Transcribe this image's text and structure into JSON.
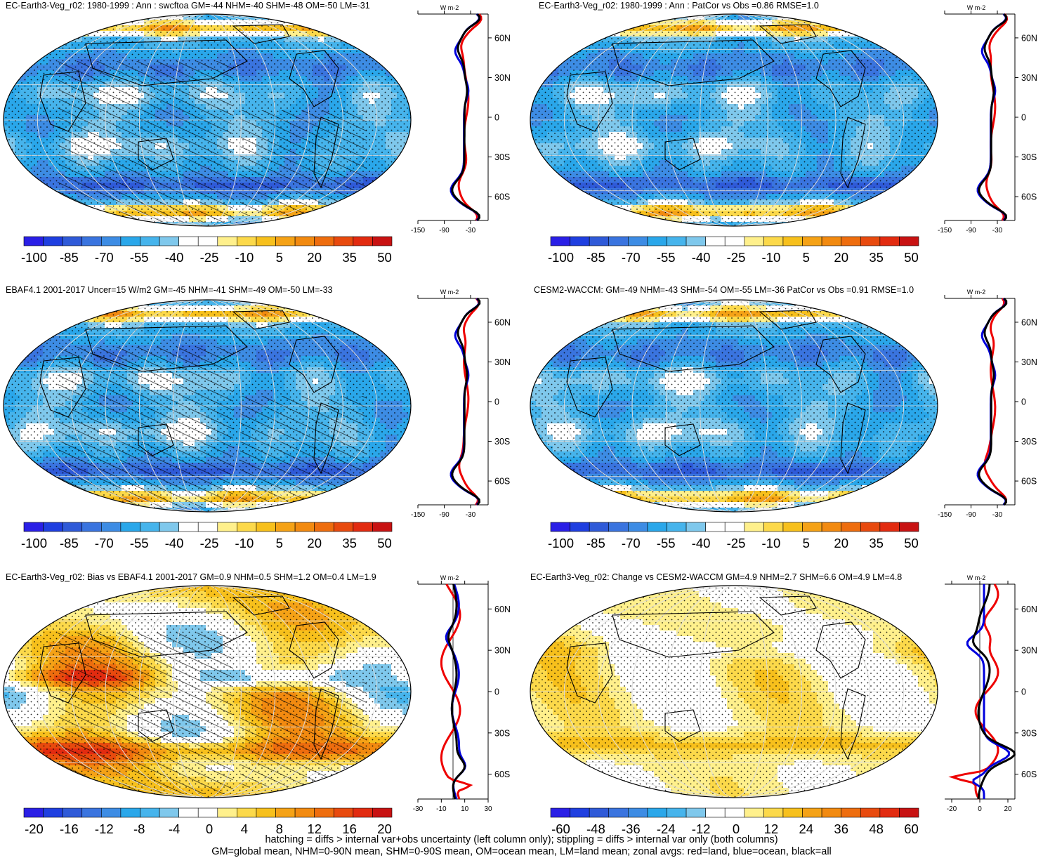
{
  "footnotes": [
    "hatching = diffs > internal var+obs uncertainty (left column only); stippling = diffs > internal var only (both columns)",
    "GM=global mean, NHM=0-90N mean, SHM=0-90S mean, OM=ocean mean, LM=land mean; zonal avgs: red=land, blue=ocean, black=all"
  ],
  "chart_data": [
    {
      "type": "heatmap",
      "title": "EC-Earth3-Veg_r02: 1980-1999 : Ann : swcftoa GM=-44 NHM=-40 SHM=-48 OM=-50 LM=-31",
      "colorbar_labels": [
        "-100",
        "-85",
        "-70",
        "-55",
        "-40",
        "-25",
        "-10",
        "5",
        "20",
        "35",
        "50"
      ],
      "zonal": {
        "units": "W m-2",
        "xticks": [
          "-150",
          "-90",
          "-30"
        ],
        "yticks": [
          "60N",
          "30N",
          "0",
          "30S",
          "60S"
        ]
      }
    },
    {
      "type": "heatmap",
      "title": "EC-Earth3-Veg_r02: 1980-1999 : Ann : PatCor vs Obs =0.86 RMSE=1.0",
      "colorbar_labels": [
        "-100",
        "-85",
        "-70",
        "-55",
        "-40",
        "-25",
        "-10",
        "5",
        "20",
        "35",
        "50"
      ],
      "zonal": {
        "units": "W m-2",
        "xticks": [
          "-150",
          "-90",
          "-30"
        ],
        "yticks": [
          "60N",
          "30N",
          "0",
          "30S",
          "60S"
        ]
      }
    },
    {
      "type": "heatmap",
      "title": "EBAF4.1 2001-2017 Uncer=15 W/m2 GM=-45 NHM=-41 SHM=-49 OM=-50 LM=-33",
      "colorbar_labels": [
        "-100",
        "-85",
        "-70",
        "-55",
        "-40",
        "-25",
        "-10",
        "5",
        "20",
        "35",
        "50"
      ],
      "zonal": {
        "units": "W m-2",
        "xticks": [
          "-150",
          "-90",
          "-30"
        ],
        "yticks": [
          "60N",
          "30N",
          "0",
          "30S",
          "60S"
        ]
      }
    },
    {
      "type": "heatmap",
      "title": "CESM2-WACCM: GM=-49 NHM=-43 SHM=-54 OM=-55 LM=-36 PatCor vs Obs =0.91 RMSE=1.0",
      "colorbar_labels": [
        "-100",
        "-85",
        "-70",
        "-55",
        "-40",
        "-25",
        "-10",
        "5",
        "20",
        "35",
        "50"
      ],
      "zonal": {
        "units": "W m-2",
        "xticks": [
          "-150",
          "-90",
          "-30"
        ],
        "yticks": [
          "60N",
          "30N",
          "0",
          "30S",
          "60S"
        ]
      }
    },
    {
      "type": "heatmap",
      "title": "EC-Earth3-Veg_r02: Bias vs EBAF4.1 2001-2017 GM=0.9 NHM=0.5 SHM=1.2 OM=0.4 LM=1.9",
      "colorbar_labels": [
        "-20",
        "-16",
        "-12",
        "-8",
        "-4",
        "0",
        "4",
        "8",
        "12",
        "16",
        "20"
      ],
      "zonal": {
        "units": "W m-2",
        "xticks": [
          "-30",
          "-10",
          "10",
          "30"
        ],
        "yticks": [
          "60N",
          "30N",
          "0",
          "30S",
          "60S"
        ]
      }
    },
    {
      "type": "heatmap",
      "title": "EC-Earth3-Veg_r02: Change vs CESM2-WACCM GM=4.9 NHM=2.7 SHM=6.6 OM=4.9 LM=4.8",
      "colorbar_labels": [
        "-60",
        "-48",
        "-36",
        "-24",
        "-12",
        "0",
        "12",
        "24",
        "36",
        "48",
        "60"
      ],
      "zonal": {
        "units": "W m-2",
        "xticks": [
          "-20",
          "0",
          "20"
        ],
        "yticks": [
          "60N",
          "30N",
          "0",
          "30S",
          "60S"
        ]
      }
    }
  ]
}
